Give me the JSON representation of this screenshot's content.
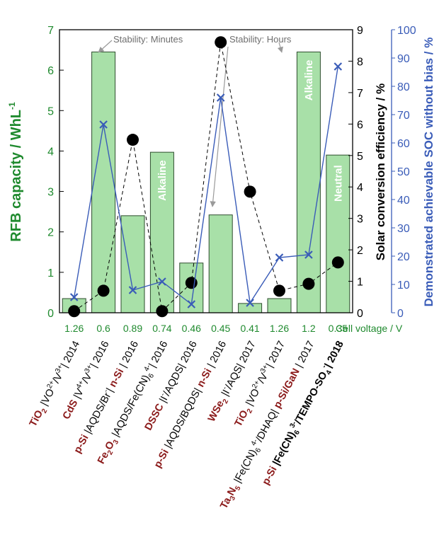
{
  "chart_data": {
    "type": "bar",
    "categories": [
      "TiO2 |VO2+/V3+| 2014",
      "CdS |V4+/V3+| 2016",
      "p-Si |AQDS/Br-| n-Si | 2016",
      "Fe2O3 |AQDS/Fe(CN)6 4-| 2016",
      "DSSC |I-/AQDS| 2016",
      "p-Si |AQDS/BQDS| n-Si | 2016",
      "WSe2 |I-/AQS| 2017",
      "TiO2 |VO2+/V3+| 2017",
      "Ta3N5 |Fe(CN)6 4-/DHAQ| p-Si/GaN | 2017",
      "p-Si |Fe(CN)6 3-/TEMPO-SO4-| 2018"
    ],
    "cell_voltage": {
      "label": "Cell voltage / V",
      "values": [
        "1.26",
        "0.6",
        "0.89",
        "0.74",
        "0.46",
        "0.45",
        "0.41",
        "1.26",
        "1.2",
        "0.35"
      ]
    },
    "series": [
      {
        "name": "RFB capacity",
        "axis": "left",
        "render": "bar",
        "color": "#a8e0a8",
        "values": [
          0.35,
          6.45,
          2.4,
          3.97,
          1.23,
          2.42,
          0.23,
          0.35,
          6.45,
          3.9
        ]
      },
      {
        "name": "Solar conversion efficiency",
        "axis": "right1",
        "render": "dashed-line-dots",
        "color": "#000000",
        "values": [
          0.05,
          0.7,
          5.5,
          0.05,
          0.95,
          8.6,
          3.85,
          0.7,
          0.92,
          1.6
        ]
      },
      {
        "name": "Demonstrated achievable SOC without bias",
        "axis": "right2",
        "render": "line-x",
        "color": "#3a5cb8",
        "values": [
          5.5,
          66.5,
          8,
          11,
          3,
          76,
          3.5,
          19.5,
          20.5,
          87
        ]
      }
    ],
    "axes": {
      "left": {
        "label": "RFB capacity / WhL",
        "label_sup": "-1",
        "ylim": [
          0,
          7
        ],
        "ticks": [
          "0",
          "1",
          "2",
          "3",
          "4",
          "5",
          "6",
          "7"
        ],
        "color": "#1f8a2e"
      },
      "right1": {
        "label": "Solar conversion efficiency / %",
        "ylim": [
          0,
          9
        ],
        "ticks": [
          "0",
          "1",
          "2",
          "3",
          "4",
          "5",
          "6",
          "7",
          "8",
          "9"
        ],
        "color": "#000000"
      },
      "right2": {
        "label": "Demonstrated achievable SOC without bias / %",
        "ylim": [
          0,
          100
        ],
        "ticks": [
          "0",
          "10",
          "20",
          "30",
          "40",
          "50",
          "60",
          "70",
          "80",
          "90",
          "100"
        ],
        "color": "#3a5cb8"
      }
    },
    "bar_labels": [
      {
        "bar": 3,
        "text": "Alkaline"
      },
      {
        "bar": 8,
        "text": "Alkaline"
      },
      {
        "bar": 9,
        "text": "Neutral"
      }
    ],
    "annotations": [
      {
        "text": "Stability: Minutes"
      },
      {
        "text": "Stability: Hours"
      }
    ],
    "grid": false,
    "legend": "none"
  }
}
